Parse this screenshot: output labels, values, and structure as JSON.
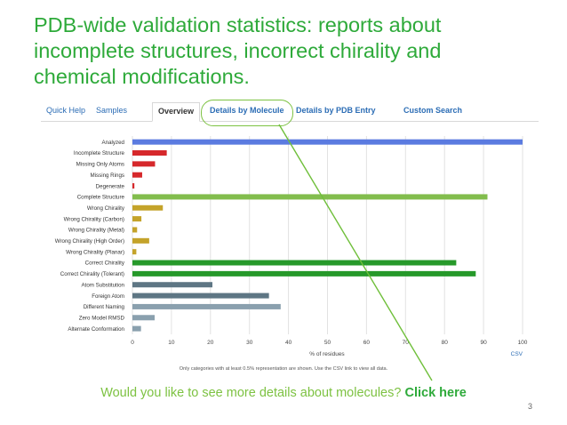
{
  "slide": {
    "title_lines": [
      "PDB-wide validation statistics: reports about",
      "incomplete structures, incorrect chirality and",
      "chemical modifications."
    ],
    "cta_text": "Would you like to see more details about molecules?",
    "cta_link": "Click here",
    "page_number": "3"
  },
  "tabs": {
    "quick_help": "Quick Help",
    "samples": "Samples",
    "overview": "Overview",
    "details_molecule": "Details by Molecule",
    "details_entry": "Details by PDB Entry",
    "custom_search": "Custom Search"
  },
  "note": "Only categories with at least 0.5% representation are shown. Use the CSV link to view all data.",
  "csv_label": "CSV",
  "colors": {
    "title_green": "#2eaa3a",
    "cta_green": "#7dc242",
    "link_blue": "#2c6db5",
    "bars": {
      "blue": "#5b7be0",
      "red": "#d6282b",
      "lightgreen": "#82bd4d",
      "olive": "#c4a32a",
      "darkgreen": "#26992a",
      "slate": "#5e7684",
      "steel": "#8aa0ae"
    }
  },
  "chart_data": {
    "type": "bar",
    "orientation": "horizontal",
    "xlabel": "% of residues",
    "xlim": [
      0,
      100
    ],
    "xticks": [
      0,
      10,
      20,
      30,
      40,
      50,
      60,
      70,
      80,
      90,
      100
    ],
    "grid": true,
    "categories": [
      "Analyzed",
      "Incomplete Structure",
      "Missing Only Atoms",
      "Missing Rings",
      "Degenerate",
      "Complete Structure",
      "Wrong Chirality",
      "Wrong Chirality (Carbon)",
      "Wrong Chirality (Metal)",
      "Wrong Chirality (High Order)",
      "Wrong Chirality (Planar)",
      "Correct Chirality",
      "Correct Chirality (Tolerant)",
      "Atom Substitution",
      "Foreign Atom",
      "Different Naming",
      "Zero Model RMSD",
      "Alternate Conformation"
    ],
    "values": [
      100,
      8.8,
      5.8,
      2.5,
      0.5,
      91,
      7.8,
      2.3,
      1.2,
      4.3,
      1.0,
      83,
      88,
      20.5,
      35,
      38,
      5.7,
      2.2
    ],
    "bar_colors": [
      "blue",
      "red",
      "red",
      "red",
      "red",
      "lightgreen",
      "olive",
      "olive",
      "olive",
      "olive",
      "olive",
      "darkgreen",
      "darkgreen",
      "slate",
      "slate",
      "steel",
      "steel",
      "steel"
    ]
  }
}
